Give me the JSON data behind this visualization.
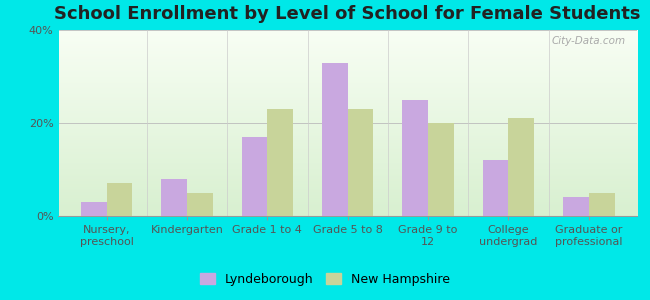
{
  "title": "School Enrollment by Level of School for Female Students",
  "categories": [
    "Nursery,\npreschool",
    "Kindergarten",
    "Grade 1 to 4",
    "Grade 5 to 8",
    "Grade 9 to\n12",
    "College\nundergrad",
    "Graduate or\nprofessional"
  ],
  "lyndeborough": [
    3,
    8,
    17,
    33,
    25,
    12,
    4
  ],
  "new_hampshire": [
    7,
    5,
    23,
    23,
    20,
    21,
    5
  ],
  "bar_color_lynde": "#c9a8e0",
  "bar_color_nh": "#c8d49a",
  "background_color": "#00e8e8",
  "ylim": [
    0,
    40
  ],
  "yticks": [
    0,
    20,
    40
  ],
  "ytick_labels": [
    "0%",
    "20%",
    "40%"
  ],
  "legend_lynde": "Lyndeborough",
  "legend_nh": "New Hampshire",
  "watermark": "City-Data.com",
  "title_fontsize": 13,
  "tick_fontsize": 8,
  "legend_fontsize": 9
}
